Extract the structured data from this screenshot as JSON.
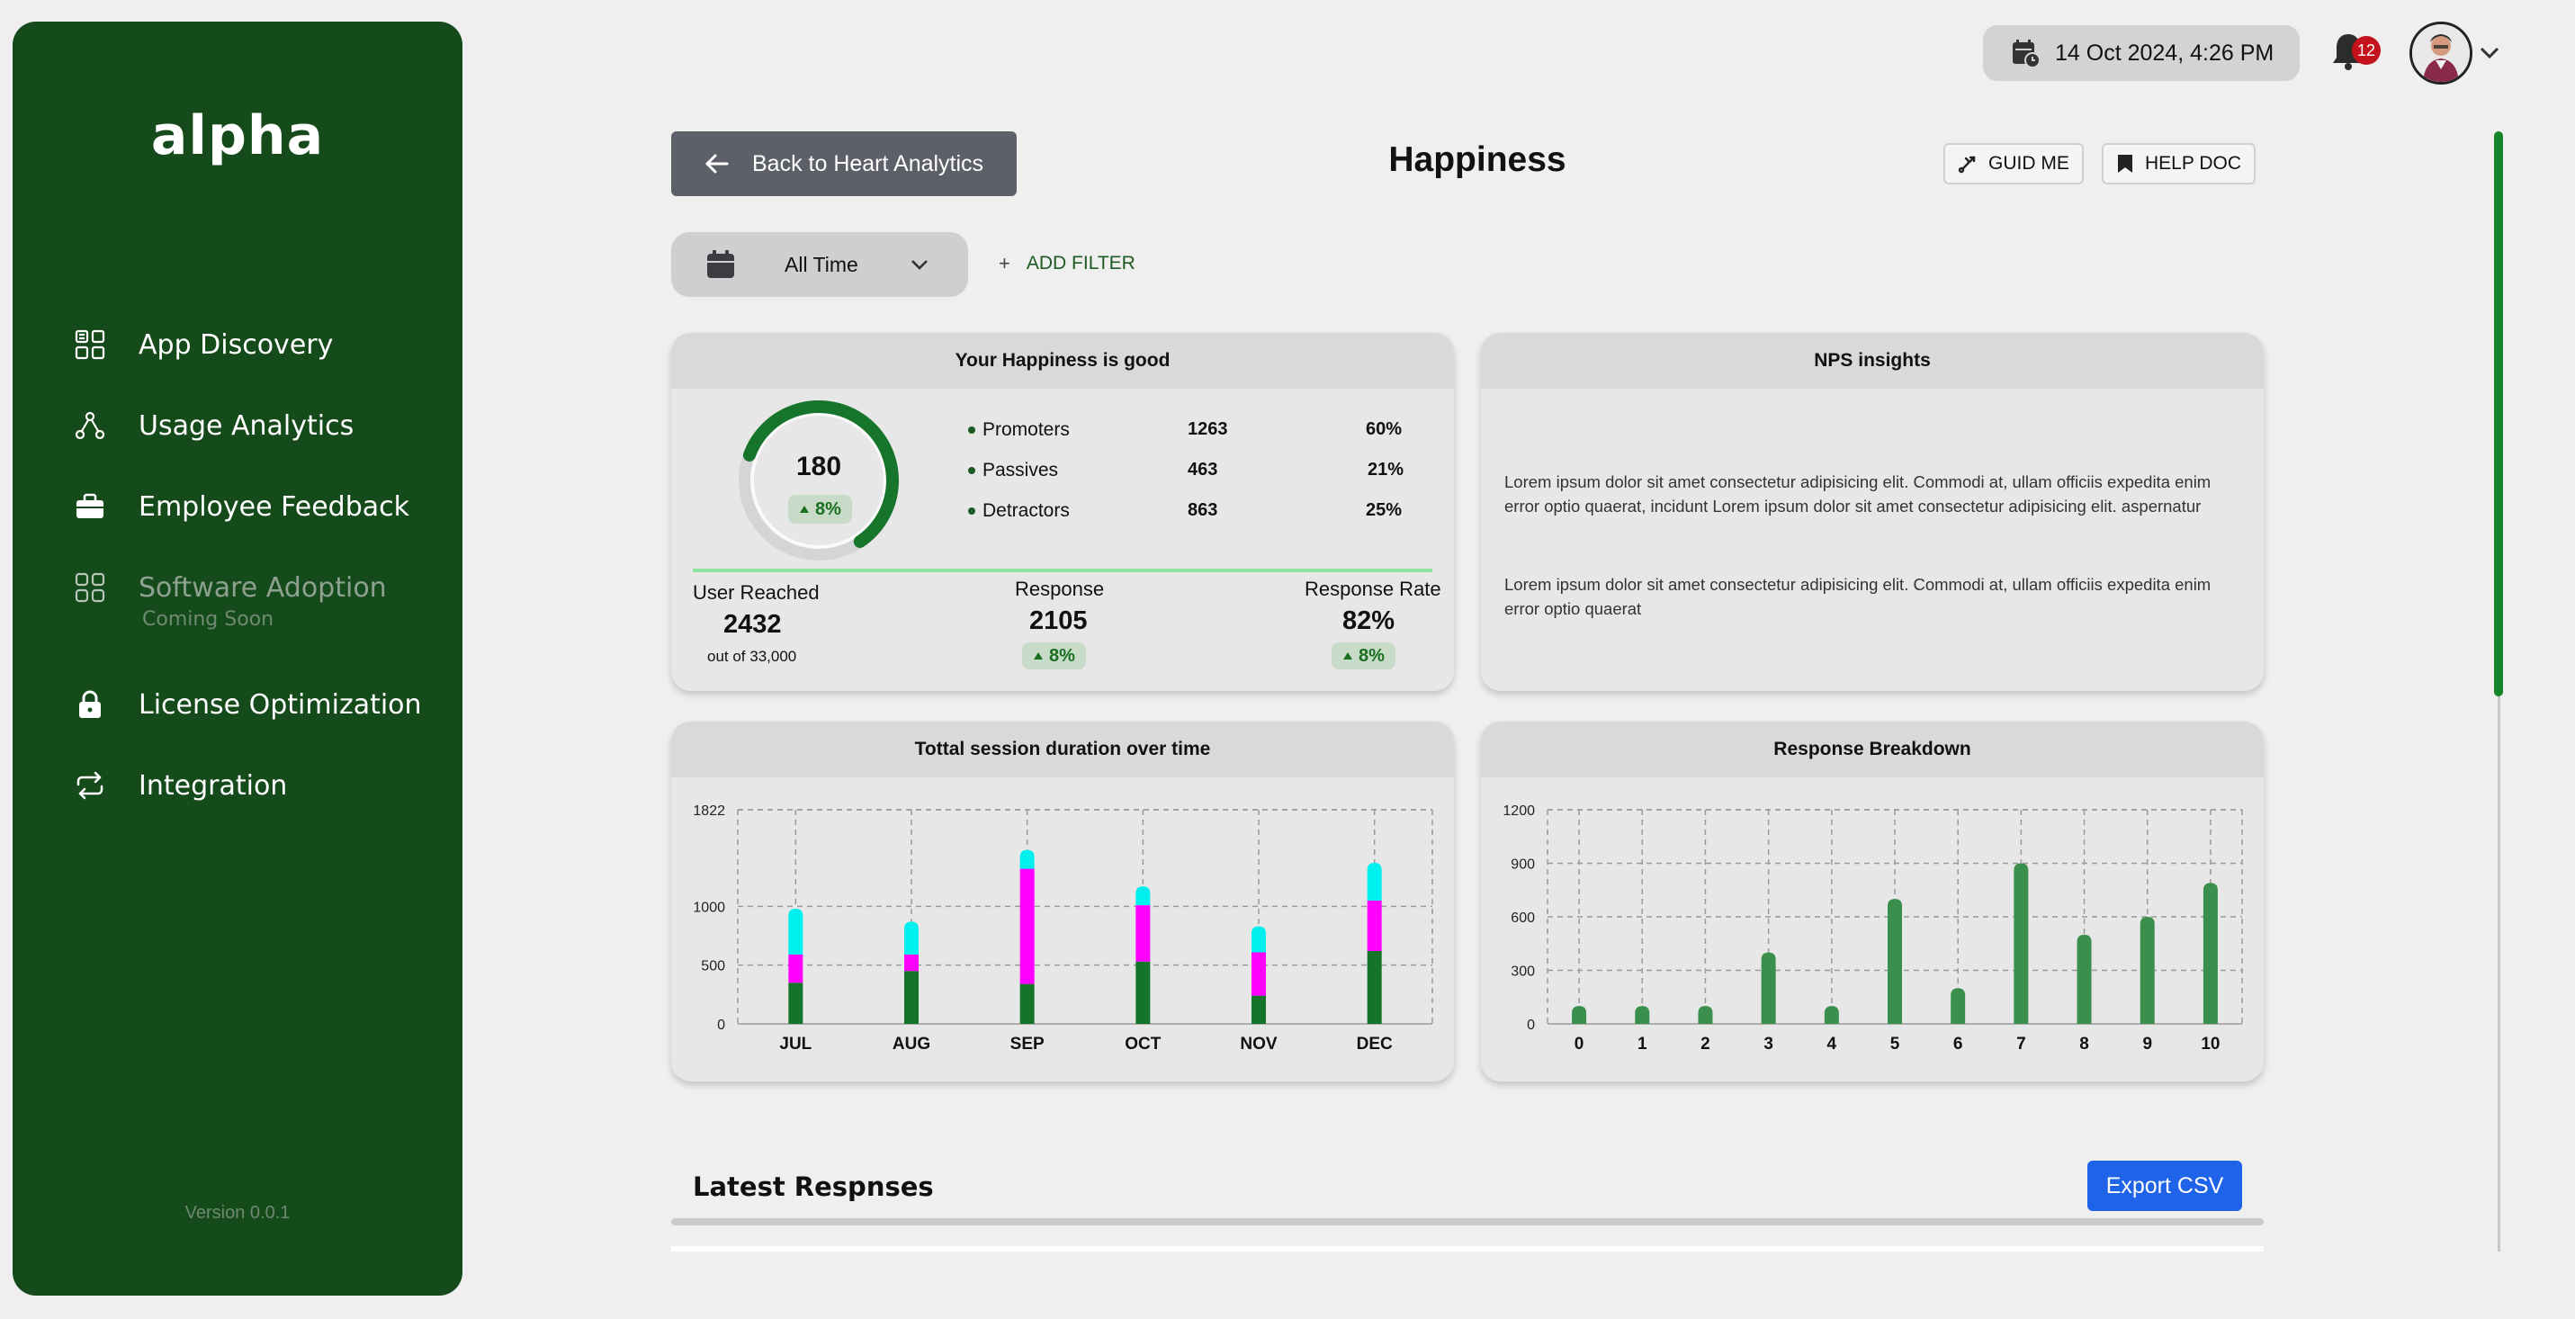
{
  "sidebar": {
    "logo": "alpha",
    "items": [
      {
        "label": "App Discovery",
        "icon": "grid-apps-icon"
      },
      {
        "label": "Usage Analytics",
        "icon": "network-nodes-icon"
      },
      {
        "label": "Employee Feedback",
        "icon": "briefcase-icon"
      },
      {
        "label": "Software Adoption",
        "icon": "grid-squares-icon",
        "sublabel": "Coming Soon"
      },
      {
        "label": "License Optimization",
        "icon": "lock-icon"
      },
      {
        "label": "Integration",
        "icon": "sync-arrows-icon"
      }
    ],
    "version": "Version 0.0.1"
  },
  "topbar": {
    "datetime": "14 Oct 2024, 4:26 PM",
    "notification_count": "12"
  },
  "header": {
    "back_label": "Back to Heart Analytics",
    "title": "Happiness",
    "guide_label": "GUID ME",
    "help_label": "HELP DOC"
  },
  "filters": {
    "time_range": "All Time",
    "add_filter": "ADD FILTER"
  },
  "happiness_card": {
    "title": "Your Happiness is good",
    "score": "180",
    "score_change": "8%",
    "score_fraction": 0.6,
    "rows": [
      {
        "label": "Promoters",
        "count": "1263",
        "pct": "60%"
      },
      {
        "label": "Passives",
        "count": "463",
        "pct": "21%"
      },
      {
        "label": "Detractors",
        "count": "863",
        "pct": "25%"
      }
    ],
    "user_reached_label": "User Reached",
    "user_reached_value": "2432",
    "user_reached_sub": "out of 33,000",
    "response_label": "Response",
    "response_value": "2105",
    "response_change": "8%",
    "rate_label": "Response Rate",
    "rate_value": "82%",
    "rate_change": "8%"
  },
  "nps_card": {
    "title": "NPS insights",
    "para1": "Lorem ipsum dolor sit amet consectetur adipisicing elit. Commodi at, ullam officiis expedita enim error optio quaerat, incidunt Lorem ipsum dolor sit amet consectetur adipisicing elit. aspernatur",
    "para2": "Lorem ipsum dolor sit amet consectetur adipisicing elit. Commodi at, ullam officiis expedita enim error optio quaerat"
  },
  "chart_data": [
    {
      "type": "bar",
      "stacked": true,
      "title": "Tottal session duration over time",
      "categories": [
        "JUL",
        "AUG",
        "SEP",
        "OCT",
        "NOV",
        "DEC"
      ],
      "yticks": [
        0,
        500,
        1000,
        1822
      ],
      "ylim": [
        0,
        1822
      ],
      "grid": true,
      "colors": [
        "#14752a",
        "#ff00ff",
        "#00f0f0"
      ],
      "series": [
        {
          "values": [
            350,
            450,
            340,
            530,
            240,
            620
          ]
        },
        {
          "values": [
            240,
            140,
            980,
            480,
            370,
            430
          ]
        },
        {
          "values": [
            390,
            280,
            160,
            160,
            220,
            320
          ]
        }
      ]
    },
    {
      "type": "bar",
      "title": "Response Breakdown",
      "categories": [
        "0",
        "1",
        "2",
        "3",
        "4",
        "5",
        "6",
        "7",
        "8",
        "9",
        "10"
      ],
      "values": [
        100,
        100,
        100,
        400,
        100,
        700,
        200,
        900,
        500,
        600,
        790
      ],
      "yticks": [
        0,
        300,
        600,
        900,
        1200
      ],
      "ylim": [
        0,
        1200
      ],
      "grid": true,
      "color": "#3a8f4d"
    }
  ],
  "latest": {
    "title": "Latest Respnses",
    "export_label": "Export CSV"
  }
}
